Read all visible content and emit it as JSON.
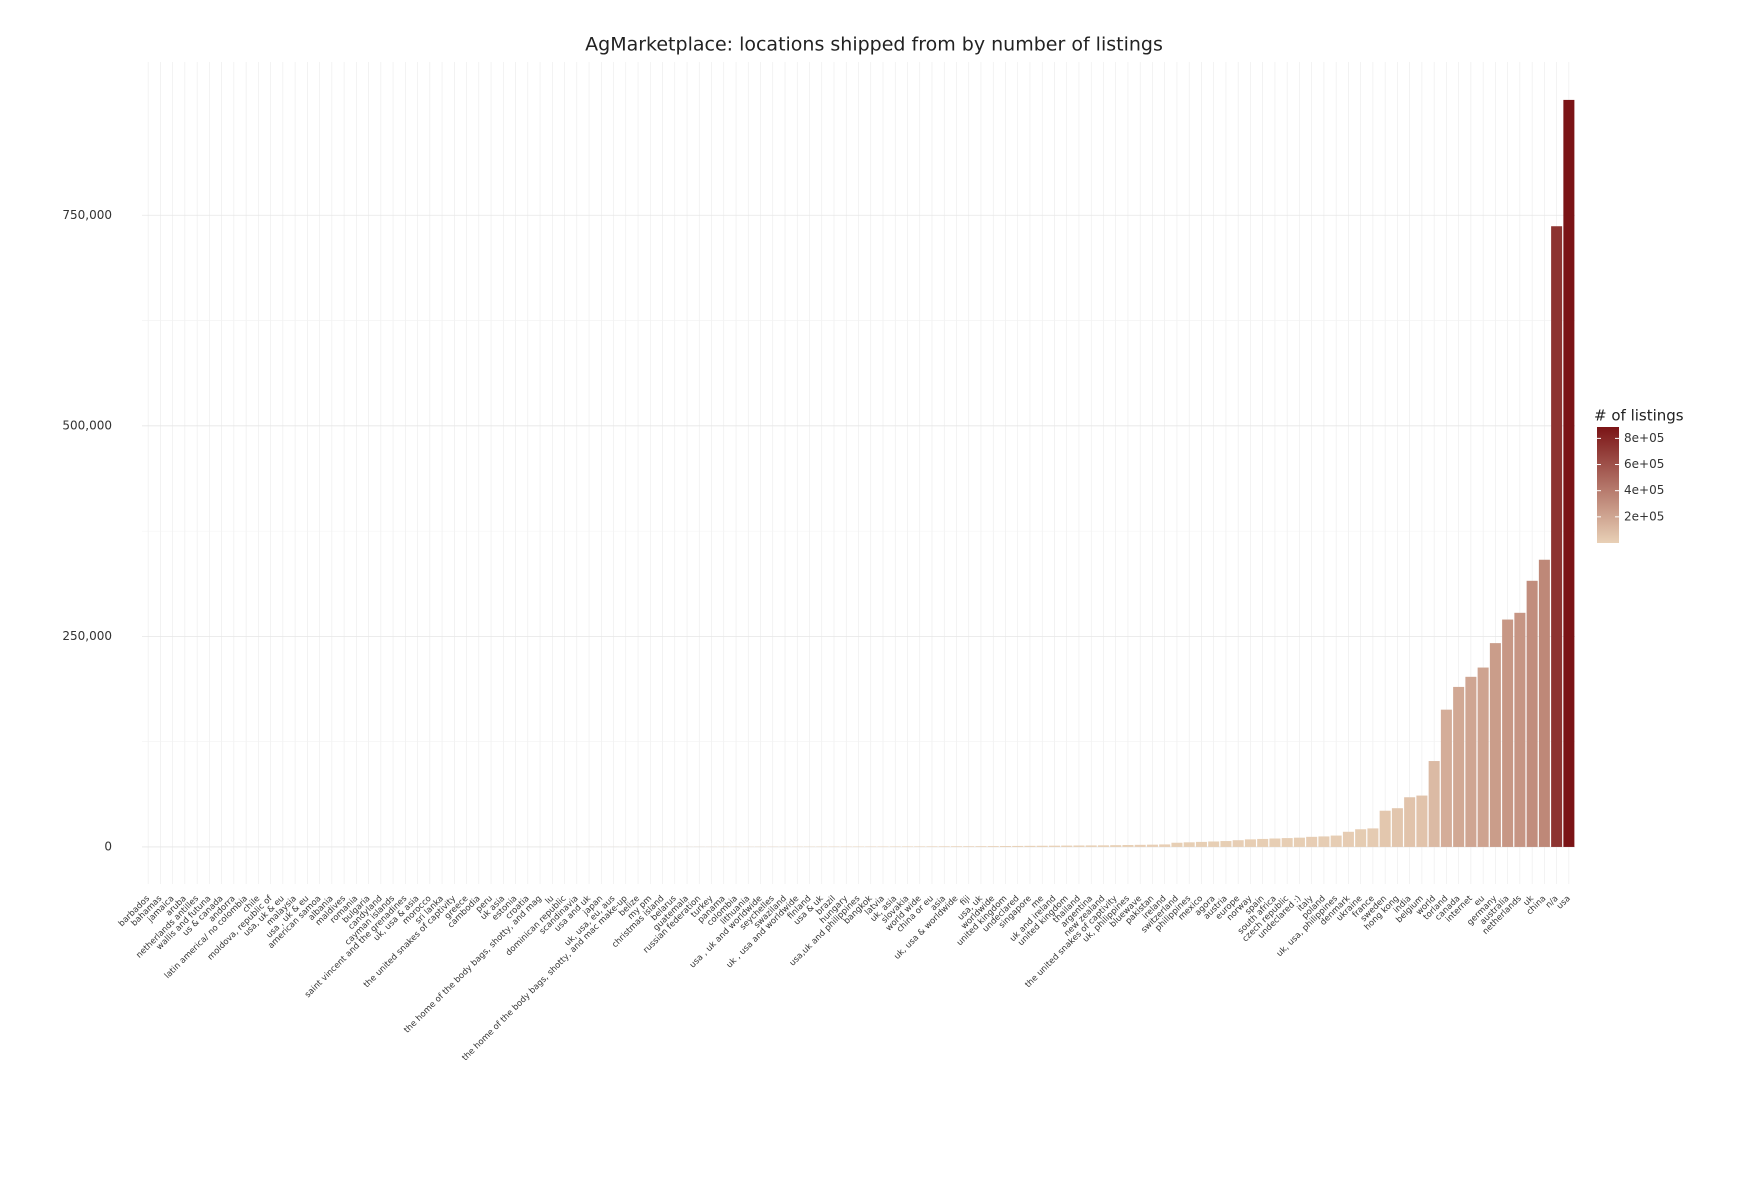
{
  "chart_data": {
    "type": "bar",
    "title": "AgMarketplace: locations shipped from by number of listings",
    "legend_title": "# of listings",
    "categories": [
      "barbados",
      "bahamas",
      "jamaica",
      "aruba",
      "netherlands antilles",
      "wallis and futuna",
      "us & canada",
      "andorra",
      "latin america/ no colombia",
      "chile",
      "moldova, republic of",
      "usa, uk & eu",
      "malaysia",
      "usa , uk & eu",
      "american samoa",
      "albania",
      "maldives",
      "romania",
      "bulgaria",
      "candyland",
      "cayman islands",
      "saint vincent and the grenadines",
      "uk, usa & asia",
      "morocco",
      "sri lanka",
      "the united snakes of captivity",
      "greece",
      "cambodia",
      "peru",
      "uk asia",
      "estonia",
      "croatia",
      "the home of the body bags, shotty, and mag",
      "lu",
      "dominican republic",
      "scandinavia",
      "usa and uk",
      "japan",
      "uk, usa, eu, aus",
      "the home of the body bags, shotty, and mac make-up",
      "belize",
      "my pm",
      "christmas island",
      "belarus",
      "guatemala",
      "russian federation",
      "turkey",
      "panama",
      "colombia",
      "lithuania",
      "usa , uk and worldwide",
      "seychelles",
      "swaziland",
      "uk , usa and worldwide",
      "finland",
      "usa & uk",
      "brazil",
      "hungary",
      "usa,uk and philippines",
      "bangkok",
      "latvia",
      "uk, asia",
      "slovakia",
      "world wide",
      "china or eu",
      "asia",
      "uk, usa & worldwide",
      "fiji",
      "usa, uk",
      "worldwide",
      "united kingdom",
      "undeclared",
      "singapore",
      "me",
      "uk and ireland",
      "united kingdom",
      "thailand",
      "argentina",
      "new zealand",
      "the united snakes of captivity",
      "uk, philippines",
      "bluewave",
      "pakistan",
      "ireland",
      "switzerland",
      "philippines",
      "mexico",
      "agora",
      "austria",
      "europe",
      "norway",
      "spain",
      "south africa",
      "czech republic",
      "undeclared :)",
      "italy",
      "poland",
      "uk, usa, philippines",
      "denmark",
      "ukraine",
      "france",
      "sweden",
      "hong kong",
      "india",
      "belgium",
      "world",
      "torland",
      "canada",
      "internet",
      "eu",
      "germany",
      "australia",
      "netherlands",
      "uk",
      "china",
      "n/a",
      "usa"
    ],
    "values": [
      1,
      1,
      1,
      1,
      2,
      2,
      2,
      3,
      3,
      3,
      4,
      5,
      5,
      6,
      7,
      8,
      9,
      10,
      12,
      14,
      15,
      17,
      20,
      22,
      25,
      28,
      30,
      35,
      40,
      45,
      50,
      55,
      60,
      65,
      70,
      80,
      90,
      100,
      110,
      120,
      130,
      140,
      150,
      165,
      180,
      200,
      220,
      240,
      260,
      280,
      300,
      320,
      340,
      360,
      380,
      400,
      430,
      460,
      490,
      520,
      550,
      580,
      620,
      660,
      700,
      750,
      800,
      850,
      900,
      1000,
      1100,
      1200,
      1300,
      1400,
      1500,
      1600,
      1700,
      1800,
      1900,
      2100,
      2300,
      2500,
      2700,
      3000,
      5000,
      5500,
      6000,
      6500,
      7000,
      8000,
      9000,
      9500,
      10000,
      10500,
      11000,
      12000,
      12500,
      13500,
      18000,
      21000,
      22000,
      43000,
      46000,
      59000,
      61000,
      102000,
      163000,
      190000,
      202000,
      213000,
      242000,
      270000,
      278000,
      316000,
      341000,
      737000,
      887000
    ],
    "ylim": [
      -44000,
      932000
    ],
    "yticks": [
      0,
      {
        "value": 250000,
        "label": "250,000"
      },
      {
        "value": 500000,
        "label": "500,000"
      },
      {
        "value": 750000,
        "label": "750,000"
      }
    ],
    "color_low": "#e8d0b6",
    "color_high": "#7b1416",
    "legend_ticks": [
      {
        "value": 200000,
        "label": "2e+05"
      },
      {
        "value": 400000,
        "label": "4e+05"
      },
      {
        "value": 600000,
        "label": "6e+05"
      },
      {
        "value": 800000,
        "label": "8e+05"
      }
    ],
    "grid": true
  }
}
